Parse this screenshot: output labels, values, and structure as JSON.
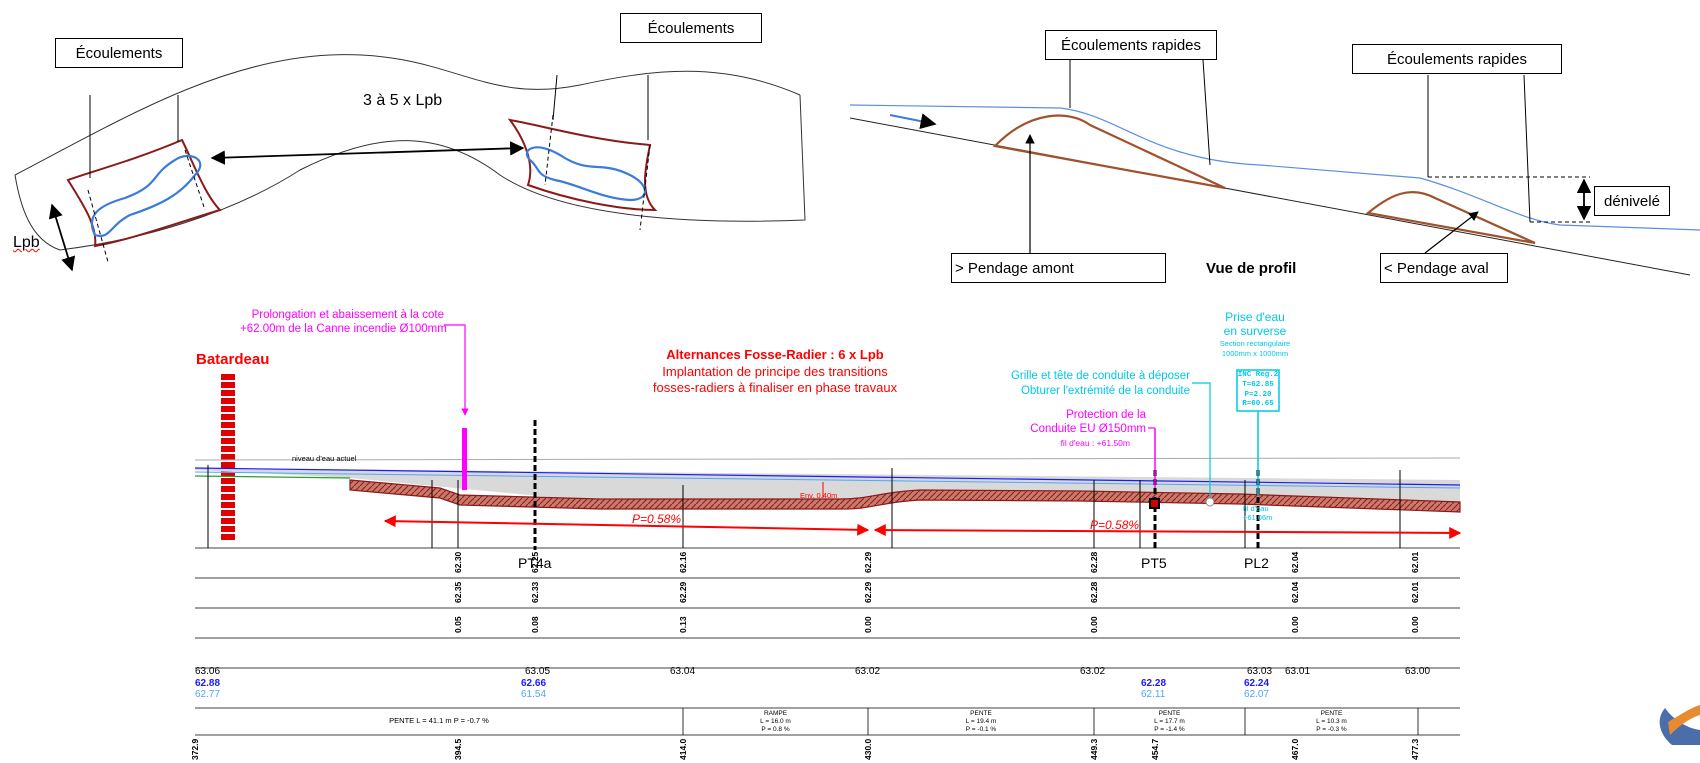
{
  "plan": {
    "flow_left_label": "Écoulements",
    "flow_right_label": "Écoulements",
    "spacing_label": "3 à 5 x Lpb",
    "width_label": "Lpb"
  },
  "profile_sketch": {
    "fast_flow_left": "Écoulements rapides",
    "fast_flow_right": "Écoulements rapides",
    "height_diff": "dénivelé",
    "upstream_slope": "> Pendage amont",
    "title": "Vue de profil",
    "downstream_slope": "< Pendage aval"
  },
  "long_profile": {
    "batardeau": "Batardeau",
    "extension_note": [
      "Prolongation et abaissement à la cote",
      "+62.00m de la Canne incendie Ø100mm"
    ],
    "alternance_title": "Alternances Fosse-Radier : 6 x Lpb",
    "alternance_lines": [
      "Implantation de principe des transitions",
      "fosses-radiers à finaliser en phase travaux"
    ],
    "intake_lines": [
      "Prise d'eau",
      "en surverse"
    ],
    "intake_section": [
      "Section rectangulaire",
      "1000mm x 1000mm"
    ],
    "grid_note": [
      "Grille et tête de conduite à déposer",
      "Obturer l'extrémité de la conduite"
    ],
    "protection_lines": [
      "Protection de la",
      "Conduite EU Ø150mm"
    ],
    "protection_level": "fil d'eau : +61.50m",
    "inc_box": [
      "INC Reg.2",
      "T=62.85",
      "P=2.20",
      "R=60.65"
    ],
    "cyan_small": [
      "fil d'eau",
      "+61.06m"
    ],
    "water_level": "niveau d'eau actuel",
    "env": "Env. 0.40m",
    "slope1": "P=0.58%",
    "slope2": "P=0.58%",
    "pt4a": "PT4a",
    "pt5": "PT5",
    "pl2": "PL2"
  },
  "table": {
    "row1": [
      "62.30",
      "62.25",
      "62.16",
      "62.29",
      "62.28",
      "62.04",
      "62.01"
    ],
    "row2": [
      "62.35",
      "62.33",
      "62.29",
      "62.29",
      "62.28",
      "62.04",
      "62.01"
    ],
    "row3": [
      "0.05",
      "0.08",
      "0.13",
      "0.00",
      "0.00",
      "0.00",
      "0.00"
    ],
    "elev_black": [
      "63.06",
      "63.05",
      "63.04",
      "63.02",
      "63.02",
      "63.03",
      "63.01",
      "63.00"
    ],
    "elev_blue": [
      "62.88",
      "62.66",
      "62.28",
      "62.24"
    ],
    "elev_lightblue": [
      "62.77",
      "61.54",
      "62.11",
      "62.07"
    ],
    "segments": [
      [
        "PENTE  L = 41.1 m  P = -0.7  %"
      ],
      [
        "RAMPE",
        "L = 16.0 m",
        "P = 0.8  %"
      ],
      [
        "PENTE",
        "L = 19.4 m",
        "P = -0.1  %"
      ],
      [
        "PENTE",
        "L = 17.7 m",
        "P = -1.4  %"
      ],
      [
        "PENTE",
        "L = 10.3 m",
        "P = -0.3  %"
      ]
    ],
    "stations": [
      "372.9",
      "394.5",
      "414.0",
      "430.0",
      "449.3",
      "454.7",
      "467.0",
      "477.3"
    ]
  },
  "colors": {
    "bank": "#8b1a1a",
    "flow": "#3a7bdc",
    "sediment": "#a0522d",
    "annot_red": "#ff0000",
    "annot_magenta": "#ff00ff",
    "annot_cyan": "#00c8e6"
  }
}
